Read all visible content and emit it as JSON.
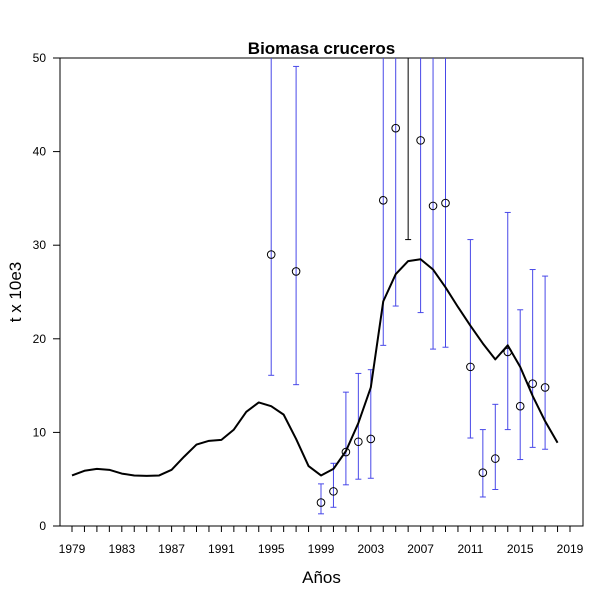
{
  "chart_data": {
    "type": "line",
    "title": "Biomasa cruceros",
    "xlabel": "Años",
    "ylabel": "t x 10e3",
    "xlim": [
      1979,
      2019
    ],
    "ylim": [
      0,
      50
    ],
    "x_ticks": [
      1979,
      1980,
      1981,
      1982,
      1983,
      1984,
      1985,
      1986,
      1987,
      1988,
      1989,
      1990,
      1991,
      1992,
      1993,
      1994,
      1995,
      1996,
      1997,
      1998,
      1999,
      2000,
      2001,
      2002,
      2003,
      2004,
      2005,
      2006,
      2007,
      2008,
      2009,
      2010,
      2011,
      2012,
      2013,
      2014,
      2015,
      2016,
      2017,
      2018,
      2019
    ],
    "x_tick_labels": [
      "1979",
      "1983",
      "1987",
      "1991",
      "1995",
      "1999",
      "2003",
      "2007",
      "2011",
      "2015",
      "2019"
    ],
    "y_ticks": [
      0,
      10,
      20,
      30,
      40,
      50
    ],
    "grid": false,
    "colors": {
      "line": "#000000",
      "error_bar": "#4848e8",
      "point": "#000000"
    },
    "series": [
      {
        "type": "line",
        "x": [
          1979,
          1980,
          1981,
          1982,
          1983,
          1984,
          1985,
          1986,
          1987,
          1988,
          1989,
          1990,
          1991,
          1992,
          1993,
          1994,
          1995,
          1996,
          1997,
          1998,
          1999,
          2000,
          2001,
          2002,
          2003,
          2004,
          2005,
          2006,
          2007,
          2008,
          2009,
          2010,
          2011,
          2012,
          2013,
          2014,
          2015,
          2016,
          2017,
          2018
        ],
        "y": [
          5.4,
          5.9,
          6.1,
          6.0,
          5.6,
          5.4,
          5.35,
          5.4,
          6.0,
          7.4,
          8.7,
          9.1,
          9.2,
          10.3,
          12.2,
          13.2,
          12.8,
          11.9,
          9.3,
          6.4,
          5.4,
          6.1,
          8.0,
          11.0,
          14.8,
          24.0,
          26.9,
          28.3,
          28.5,
          27.4,
          25.5,
          23.4,
          21.4,
          19.5,
          17.8,
          19.3,
          17.0,
          13.9,
          11.2,
          8.9
        ]
      },
      {
        "type": "scatter_with_error_bars",
        "x": [
          1995,
          1997,
          1999,
          2000,
          2001,
          2002,
          2003,
          2004,
          2005,
          2007,
          2008,
          2009,
          2011,
          2012,
          2013,
          2014,
          2015,
          2016,
          2017
        ],
        "y": [
          29.0,
          27.2,
          2.5,
          3.7,
          7.9,
          9.0,
          9.3,
          34.8,
          42.5,
          41.2,
          34.2,
          34.5,
          17.0,
          5.7,
          7.2,
          18.6,
          12.8,
          15.2,
          14.8
        ],
        "lower": [
          16.1,
          15.1,
          1.3,
          2.0,
          4.4,
          5.0,
          5.1,
          19.3,
          23.5,
          22.8,
          18.9,
          19.1,
          9.4,
          3.1,
          3.9,
          10.3,
          7.1,
          8.4,
          8.2
        ],
        "upper": [
          50,
          49.1,
          4.5,
          6.7,
          14.3,
          16.3,
          16.7,
          50,
          50,
          50,
          50,
          50,
          30.6,
          10.3,
          13.0,
          33.5,
          23.1,
          27.4,
          26.7
        ]
      }
    ],
    "extra_segment": {
      "x": 2006,
      "lower": 30.6,
      "upper": 50
    }
  }
}
